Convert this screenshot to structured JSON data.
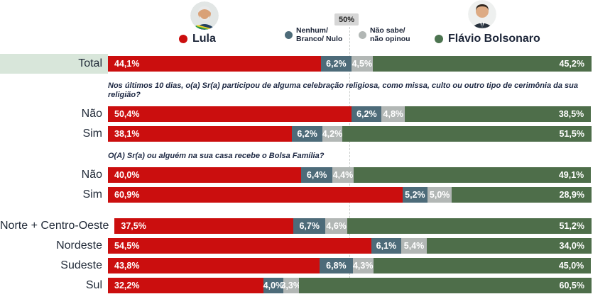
{
  "header": {
    "marker_label": "50%",
    "lula_label": "Lula",
    "flavio_label": "Flávio Bolsonaro",
    "legend_nenhum_line1": "Nenhum/",
    "legend_nenhum_line2": "Branco/ Nulo",
    "legend_naosabe_line1": "Não sabe/",
    "legend_naosabe_line2": "não opinou"
  },
  "colors": {
    "lula": "#cb0e0e",
    "nenhum_branco_nulo": "#4d6b79",
    "nao_sabe": "#b2b7b5",
    "flavio": "#4e6e4a",
    "flavio_dot": "#4c7450",
    "total_band": "#d8e6da",
    "marker_bg": "#d6d6d6"
  },
  "chart_data": {
    "type": "bar",
    "orientation": "horizontal",
    "stacked": true,
    "xlim": [
      0,
      100
    ],
    "axis_marker": "50%",
    "legend_position": "top",
    "series_names": [
      "Lula",
      "Nenhum/ Branco/ Nulo",
      "Não sabe/ não opinou",
      "Flávio Bolsonaro"
    ],
    "questions": [
      "Nos últimos 10 dias, o(a) Sr(a) participou de alguma celebração religiosa, como missa, culto ou outro tipo de cerimônia da sua religião?",
      "O(A) Sr(a) ou alguém na sua casa recebe o Bolsa Família?"
    ],
    "rows": [
      {
        "label": "Total",
        "group": "total",
        "values": [
          44.1,
          6.2,
          4.5,
          45.2
        ],
        "labels": [
          "44,1%",
          "6,2%",
          "4,5%",
          "45,2%"
        ]
      },
      {
        "label": "Não",
        "group": "religiao",
        "values": [
          50.4,
          6.2,
          4.8,
          38.5
        ],
        "labels": [
          "50,4%",
          "6,2%",
          "4,8%",
          "38,5%"
        ]
      },
      {
        "label": "Sim",
        "group": "religiao",
        "values": [
          38.1,
          6.2,
          4.2,
          51.5
        ],
        "labels": [
          "38,1%",
          "6,2%",
          "4,2%",
          "51,5%"
        ]
      },
      {
        "label": "Não",
        "group": "bolsa",
        "values": [
          40.0,
          6.4,
          4.4,
          49.1
        ],
        "labels": [
          "40,0%",
          "6,4%",
          "4,4%",
          "49,1%"
        ]
      },
      {
        "label": "Sim",
        "group": "bolsa",
        "values": [
          60.9,
          5.2,
          5.0,
          28.9
        ],
        "labels": [
          "60,9%",
          "5,2%",
          "5,0%",
          "28,9%"
        ]
      },
      {
        "label": "Norte + Centro-Oeste",
        "group": "regiao",
        "values": [
          37.5,
          6.7,
          4.6,
          51.2
        ],
        "labels": [
          "37,5%",
          "6,7%",
          "4,6%",
          "51,2%"
        ]
      },
      {
        "label": "Nordeste",
        "group": "regiao",
        "values": [
          54.5,
          6.1,
          5.4,
          34.0
        ],
        "labels": [
          "54,5%",
          "6,1%",
          "5,4%",
          "34,0%"
        ]
      },
      {
        "label": "Sudeste",
        "group": "regiao",
        "values": [
          43.8,
          6.8,
          4.3,
          45.0
        ],
        "labels": [
          "43,8%",
          "6,8%",
          "4,3%",
          "45,0%"
        ]
      },
      {
        "label": "Sul",
        "group": "regiao",
        "values": [
          32.2,
          4.0,
          3.3,
          60.5
        ],
        "labels": [
          "32,2%",
          "4,0%",
          "3,3%",
          "60,5%"
        ]
      }
    ]
  }
}
